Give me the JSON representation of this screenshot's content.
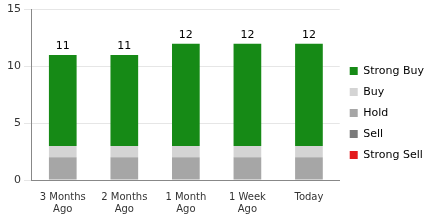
{
  "chart_data": {
    "type": "bar",
    "stacked": true,
    "categories": [
      "3 Months Ago",
      "2 Months Ago",
      "1 Month Ago",
      "1 Week Ago",
      "Today"
    ],
    "series": [
      {
        "name": "Strong Sell",
        "color": "#e31a1c",
        "values": [
          0,
          0,
          0,
          0,
          0
        ]
      },
      {
        "name": "Sell",
        "color": "#7a7a7a",
        "values": [
          0,
          0,
          0,
          0,
          0
        ]
      },
      {
        "name": "Hold",
        "color": "#a6a6a6",
        "values": [
          2,
          2,
          2,
          2,
          2
        ]
      },
      {
        "name": "Buy",
        "color": "#d4d4d4",
        "values": [
          1,
          1,
          1,
          1,
          1
        ]
      },
      {
        "name": "Strong Buy",
        "color": "#168a16",
        "values": [
          8,
          8,
          9,
          9,
          9
        ]
      }
    ],
    "totals": [
      11,
      11,
      12,
      12,
      12
    ],
    "ylim": [
      0,
      15
    ],
    "yticks": [
      0,
      5,
      10,
      15
    ],
    "grid": true,
    "legend": "right"
  }
}
